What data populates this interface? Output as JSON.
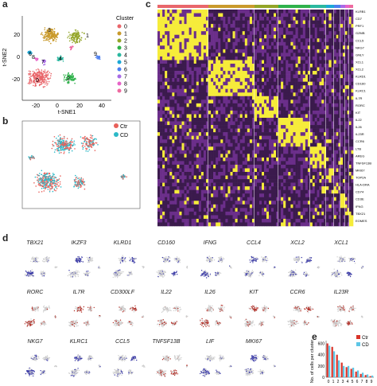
{
  "panels": {
    "a": {
      "label": "a"
    },
    "b": {
      "label": "b"
    },
    "c": {
      "label": "c"
    },
    "d": {
      "label": "d"
    },
    "e": {
      "label": "e"
    }
  },
  "colors": {
    "cluster_palette": [
      "#e9666b",
      "#c99a2b",
      "#93a527",
      "#2fb24b",
      "#2ab8a0",
      "#1ba8d6",
      "#4c7ff0",
      "#a86be6",
      "#e763c8",
      "#ee6aa0"
    ],
    "ctr": "#e8605a",
    "cd": "#2cb9c7",
    "heat_low": "#3b1a4d",
    "heat_mid": "#6b2e8a",
    "heat_high": "#f6ec3a",
    "feature_blue": "#3a3aa8",
    "feature_red": "#b3322a",
    "bar_ctr": "#d9342a",
    "bar_cd": "#5ec6e6"
  },
  "tsne_cluster": {
    "legend_title": "Cluster",
    "legend": [
      "0",
      "1",
      "2",
      "3",
      "4",
      "5",
      "6",
      "7",
      "8",
      "9"
    ],
    "xlabel": "t-SNE1",
    "ylabel": "t-SNE2",
    "xticks": [
      "-20",
      "0",
      "20",
      "40"
    ],
    "yticks": [
      "20",
      "0",
      "-20"
    ],
    "point_labels": [
      "1",
      "3",
      "0",
      "2",
      "4",
      "6",
      "9",
      "7",
      "8"
    ]
  },
  "tsne_condition": {
    "legend": [
      "Ctr",
      "CD"
    ]
  },
  "heatmap": {
    "clusters": [
      "0",
      "1",
      "2",
      "3",
      "4",
      "5",
      "6",
      "7",
      "8",
      "9"
    ],
    "genes": [
      "KLRB1",
      "CD7",
      "PRF1",
      "GZMB",
      "CCL5",
      "NKG7",
      "GNLY",
      "XCL1",
      "XCL2",
      "KLRD1",
      "CD160",
      "KLRC1",
      "IL7R",
      "RORC",
      "KIT",
      "IL22",
      "IL26",
      "IL23R",
      "CCR6",
      "LTB",
      "AREG",
      "TNFSF13B",
      "MKI67",
      "TOP2A",
      "HLA-DRA",
      "CD74",
      "CD3E",
      "IFNG",
      "TBX21",
      "EOMES"
    ]
  },
  "features": {
    "rows": [
      [
        "TBX21",
        "IKZF3",
        "KLRD1",
        "CD160",
        "IFNG",
        "CCL4",
        "XCL2",
        "XCL1"
      ],
      [
        "RORC",
        "IL7R",
        "CD300LF",
        "IL22",
        "IL26",
        "KIT",
        "CCR6",
        "IL23R"
      ],
      [
        "NKG7",
        "KLRC1",
        "CCL5",
        "TNFSF13B",
        "LIF",
        "MKI67"
      ]
    ]
  },
  "chart_data": {
    "type": "bar",
    "categories": [
      "0",
      "1",
      "2",
      "3",
      "4",
      "5",
      "6",
      "7",
      "8",
      "9"
    ],
    "series": [
      {
        "name": "Ctr",
        "values": [
          600,
          540,
          400,
          260,
          180,
          150,
          100,
          60,
          40,
          20
        ]
      },
      {
        "name": "CD",
        "values": [
          560,
          460,
          300,
          200,
          200,
          170,
          120,
          80,
          50,
          30
        ]
      }
    ],
    "ylabel": "No. of cells per cluster",
    "xlabel": "",
    "yticks": [
      "0",
      "200",
      "400",
      "600"
    ],
    "ylim": [
      0,
      650
    ]
  }
}
